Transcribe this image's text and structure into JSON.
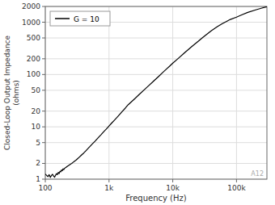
{
  "chart_data": {
    "type": "line",
    "x_label": "Frequency (Hz)",
    "y_label": "Closed-Loop Output Impedance\n(ohms)",
    "annotations": [
      "A12"
    ],
    "log": true,
    "grid": true,
    "legend": "upper left",
    "xlim": [
      100,
      300000
    ],
    "ylim": [
      1,
      2000
    ],
    "xticks": [
      100,
      {
        "value": 1000,
        "label": "1k"
      },
      {
        "value": 10000,
        "label": "10k"
      },
      {
        "value": 100000,
        "label": "100k"
      }
    ],
    "yticks": [
      1,
      2,
      5,
      10,
      20,
      50,
      100,
      200,
      500,
      1000,
      2000
    ],
    "x": [
      100,
      105,
      110,
      115,
      120,
      125,
      130,
      135,
      140,
      145,
      150,
      155,
      160,
      165,
      170,
      175,
      180,
      185,
      190,
      195,
      200,
      210,
      220,
      230,
      240,
      250,
      260,
      270,
      280,
      290,
      300,
      320,
      340,
      360,
      380,
      400,
      430,
      460,
      500,
      550,
      600,
      650,
      700,
      750,
      800,
      850,
      900,
      950,
      1000,
      1100,
      1200,
      1400,
      1600,
      1800,
      2000,
      2500,
      3000,
      3500,
      4000,
      5000,
      6000,
      7000,
      8000,
      9000,
      10000,
      12000,
      15000,
      20000,
      25000,
      30000,
      40000,
      50000,
      60000,
      70000,
      80000,
      100000,
      120000,
      150000,
      200000,
      250000,
      300000
    ],
    "series": [
      {
        "name": "G = 10",
        "color": "#000000",
        "values": [
          1.25,
          1.18,
          1.12,
          1.22,
          1.08,
          1.18,
          1.24,
          1.15,
          1.09,
          1.19,
          1.28,
          1.22,
          1.35,
          1.28,
          1.42,
          1.38,
          1.5,
          1.45,
          1.58,
          1.52,
          1.6,
          1.68,
          1.75,
          1.82,
          1.88,
          1.95,
          2.0,
          2.08,
          2.15,
          2.22,
          2.28,
          2.45,
          2.62,
          2.8,
          2.98,
          3.15,
          3.45,
          3.78,
          4.2,
          4.75,
          5.3,
          5.9,
          6.5,
          7.1,
          7.75,
          8.4,
          9.0,
          9.7,
          10.4,
          11.8,
          13.2,
          16.2,
          19.5,
          22.8,
          26.5,
          34.0,
          42.0,
          50.0,
          58.0,
          75.0,
          92.0,
          110.0,
          128.0,
          146.0,
          165.0,
          200.0,
          255.0,
          345.0,
          430.0,
          520.0,
          685.0,
          820.0,
          940.0,
          1040.0,
          1130.0,
          1250.0,
          1380.0,
          1540.0,
          1720.0,
          1860.0,
          1980.0
        ]
      }
    ]
  }
}
